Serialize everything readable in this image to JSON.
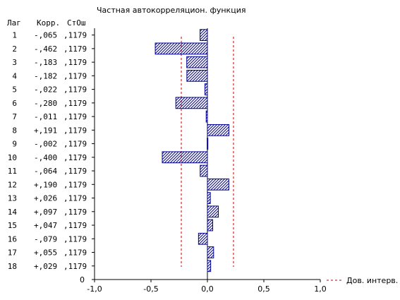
{
  "chart_data": {
    "type": "bar",
    "orientation": "horizontal",
    "title": "Частная автокорреляцион. функция",
    "table_headers": [
      "Лаг",
      "Корр.",
      "СтОш"
    ],
    "lags": [
      "1",
      "2",
      "3",
      "4",
      "5",
      "6",
      "7",
      "8",
      "9",
      "10",
      "11",
      "12",
      "13",
      "14",
      "15",
      "16",
      "17",
      "18"
    ],
    "corr_labels": [
      "-,065",
      "-,462",
      "-,183",
      "-,182",
      "-,022",
      "-,280",
      "-,011",
      "+,191",
      "-,002",
      "-,400",
      "-,064",
      "+,190",
      "+,026",
      "+,097",
      "+,047",
      "-,079",
      "+,055",
      "+,029"
    ],
    "se_labels": [
      ",1179",
      ",1179",
      ",1179",
      ",1179",
      ",1179",
      ",1179",
      ",1179",
      ",1179",
      ",1179",
      ",1179",
      ",1179",
      ",1179",
      ",1179",
      ",1179",
      ",1179",
      ",1179",
      ",1179",
      ",1179"
    ],
    "values": [
      -0.065,
      -0.462,
      -0.183,
      -0.182,
      -0.022,
      -0.28,
      -0.011,
      0.191,
      -0.002,
      -0.4,
      -0.064,
      0.19,
      0.026,
      0.097,
      0.047,
      -0.079,
      0.055,
      0.029
    ],
    "confidence_limits": [
      -0.2311,
      0.2311
    ],
    "xlim": [
      -1.0,
      1.0
    ],
    "xticks": [
      "-1,0",
      "-0,5",
      "0,0",
      "0,5",
      "1,0"
    ],
    "y_zero_label": "0",
    "legend": {
      "label": "Дов. интерв.",
      "placement": "bottom-right"
    },
    "colors": {
      "bar": "#00009a",
      "ci": "#c00000",
      "axis": "#000000"
    }
  }
}
